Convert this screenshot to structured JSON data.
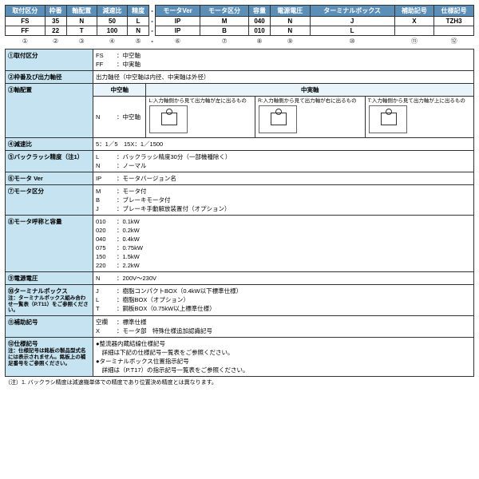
{
  "header": {
    "labels": [
      "取付区分",
      "枠番",
      "軸配置",
      "減速比",
      "精度",
      "モータVer",
      "モータ区分",
      "容量",
      "電源電圧",
      "ターミナルボックス",
      "補助記号",
      "仕様記号"
    ],
    "row1": [
      "FS",
      "35",
      "N",
      "50",
      "L",
      "IP",
      "M",
      "040",
      "N",
      "J",
      "X",
      "TZH3"
    ],
    "row2": [
      "FF",
      "22",
      "T",
      "100",
      "N",
      "IP",
      "B",
      "010",
      "N",
      "L",
      "",
      ""
    ],
    "nums": [
      "①",
      "②",
      "③",
      "④",
      "⑤",
      "⑥",
      "⑦",
      "⑧",
      "⑨",
      "⑩",
      "⑪",
      "⑫"
    ]
  },
  "rows": {
    "r1": {
      "label": "①取付区分",
      "c1": "FS",
      "v1": "：中空軸",
      "c2": "FF",
      "v2": "：中実軸"
    },
    "r2": {
      "label": "②枠番及び出力軸径",
      "val": "出力軸径（中空軸は内径、中実軸は外径）"
    },
    "r3": {
      "label": "③軸配置",
      "h1": "中空軸",
      "h2": "中実軸",
      "nc": "N",
      "nv": "：中空軸",
      "d1": "L:入力軸側から見て出力軸が左に出るもの",
      "d2": "R:入力軸側から見て出力軸が右に出るもの",
      "d3": "T:入力軸側から見て出力軸が上に出るもの"
    },
    "r4": {
      "label": "④減速比",
      "val": "5：1／5　15X：1／1500"
    },
    "r5": {
      "label": "⑤バックラッシ精度（注1）",
      "c1": "L",
      "v1": "：バックラッシ精度30分（一部機種除く）",
      "c2": "N",
      "v2": "：ノーマル"
    },
    "r6": {
      "label": "⑥モータ Ver",
      "c1": "IP",
      "v1": "：モータバージョン名"
    },
    "r7": {
      "label": "⑦モータ区分",
      "c1": "M",
      "v1": "：モータ付",
      "c2": "B",
      "v2": "：ブレーキモータ付",
      "c3": "J",
      "v3": "：ブレーキ手動解放装置付（オプション）"
    },
    "r8": {
      "label": "⑧モータ呼称と容量",
      "items": [
        [
          "010",
          "：0.1kW"
        ],
        [
          "020",
          "：0.2kW"
        ],
        [
          "040",
          "：0.4kW"
        ],
        [
          "075",
          "：0.75kW"
        ],
        [
          "150",
          "：1.5kW"
        ],
        [
          "220",
          "：2.2kW"
        ]
      ]
    },
    "r9": {
      "label": "⑨電源電圧",
      "c1": "N",
      "v1": "：200V～230V"
    },
    "r10": {
      "label": "⑩ターミナルボックス",
      "note": "注：ターミナルボックス組み合わせ一覧表（P.T11）をご参照ください。",
      "c1": "J",
      "v1": "：樹脂コンパクトBOX（0.4kW以下標準仕様）",
      "c2": "L",
      "v2": "：樹脂BOX（オプション）",
      "c3": "T",
      "v3": "：鋼板BOX（0.75kW以上標準仕様）"
    },
    "r11": {
      "label": "⑪補助記号",
      "c1": "空欄",
      "v1": "：標準仕様",
      "c2": "X",
      "v2": "：モータ部　特殊仕様追加認識記号"
    },
    "r12": {
      "label": "⑫仕様記号",
      "note": "注：仕様記号は銘板の製品型式名には表示されません。銘板上の補足番号をご参照ください。",
      "l1": "●整流器内蔵結線仕様記号",
      "l2": "　詳細は下記の仕様記号一覧表をご参照ください。",
      "l3": "●ターミナルボックス位置指示記号",
      "l4": "　詳細は（P.T17）の指示記号一覧表をご参照ください。"
    }
  },
  "footnote": "（注）1. バックラシ精度は減速機単体での精度であり位置決め精度とは異なります。"
}
